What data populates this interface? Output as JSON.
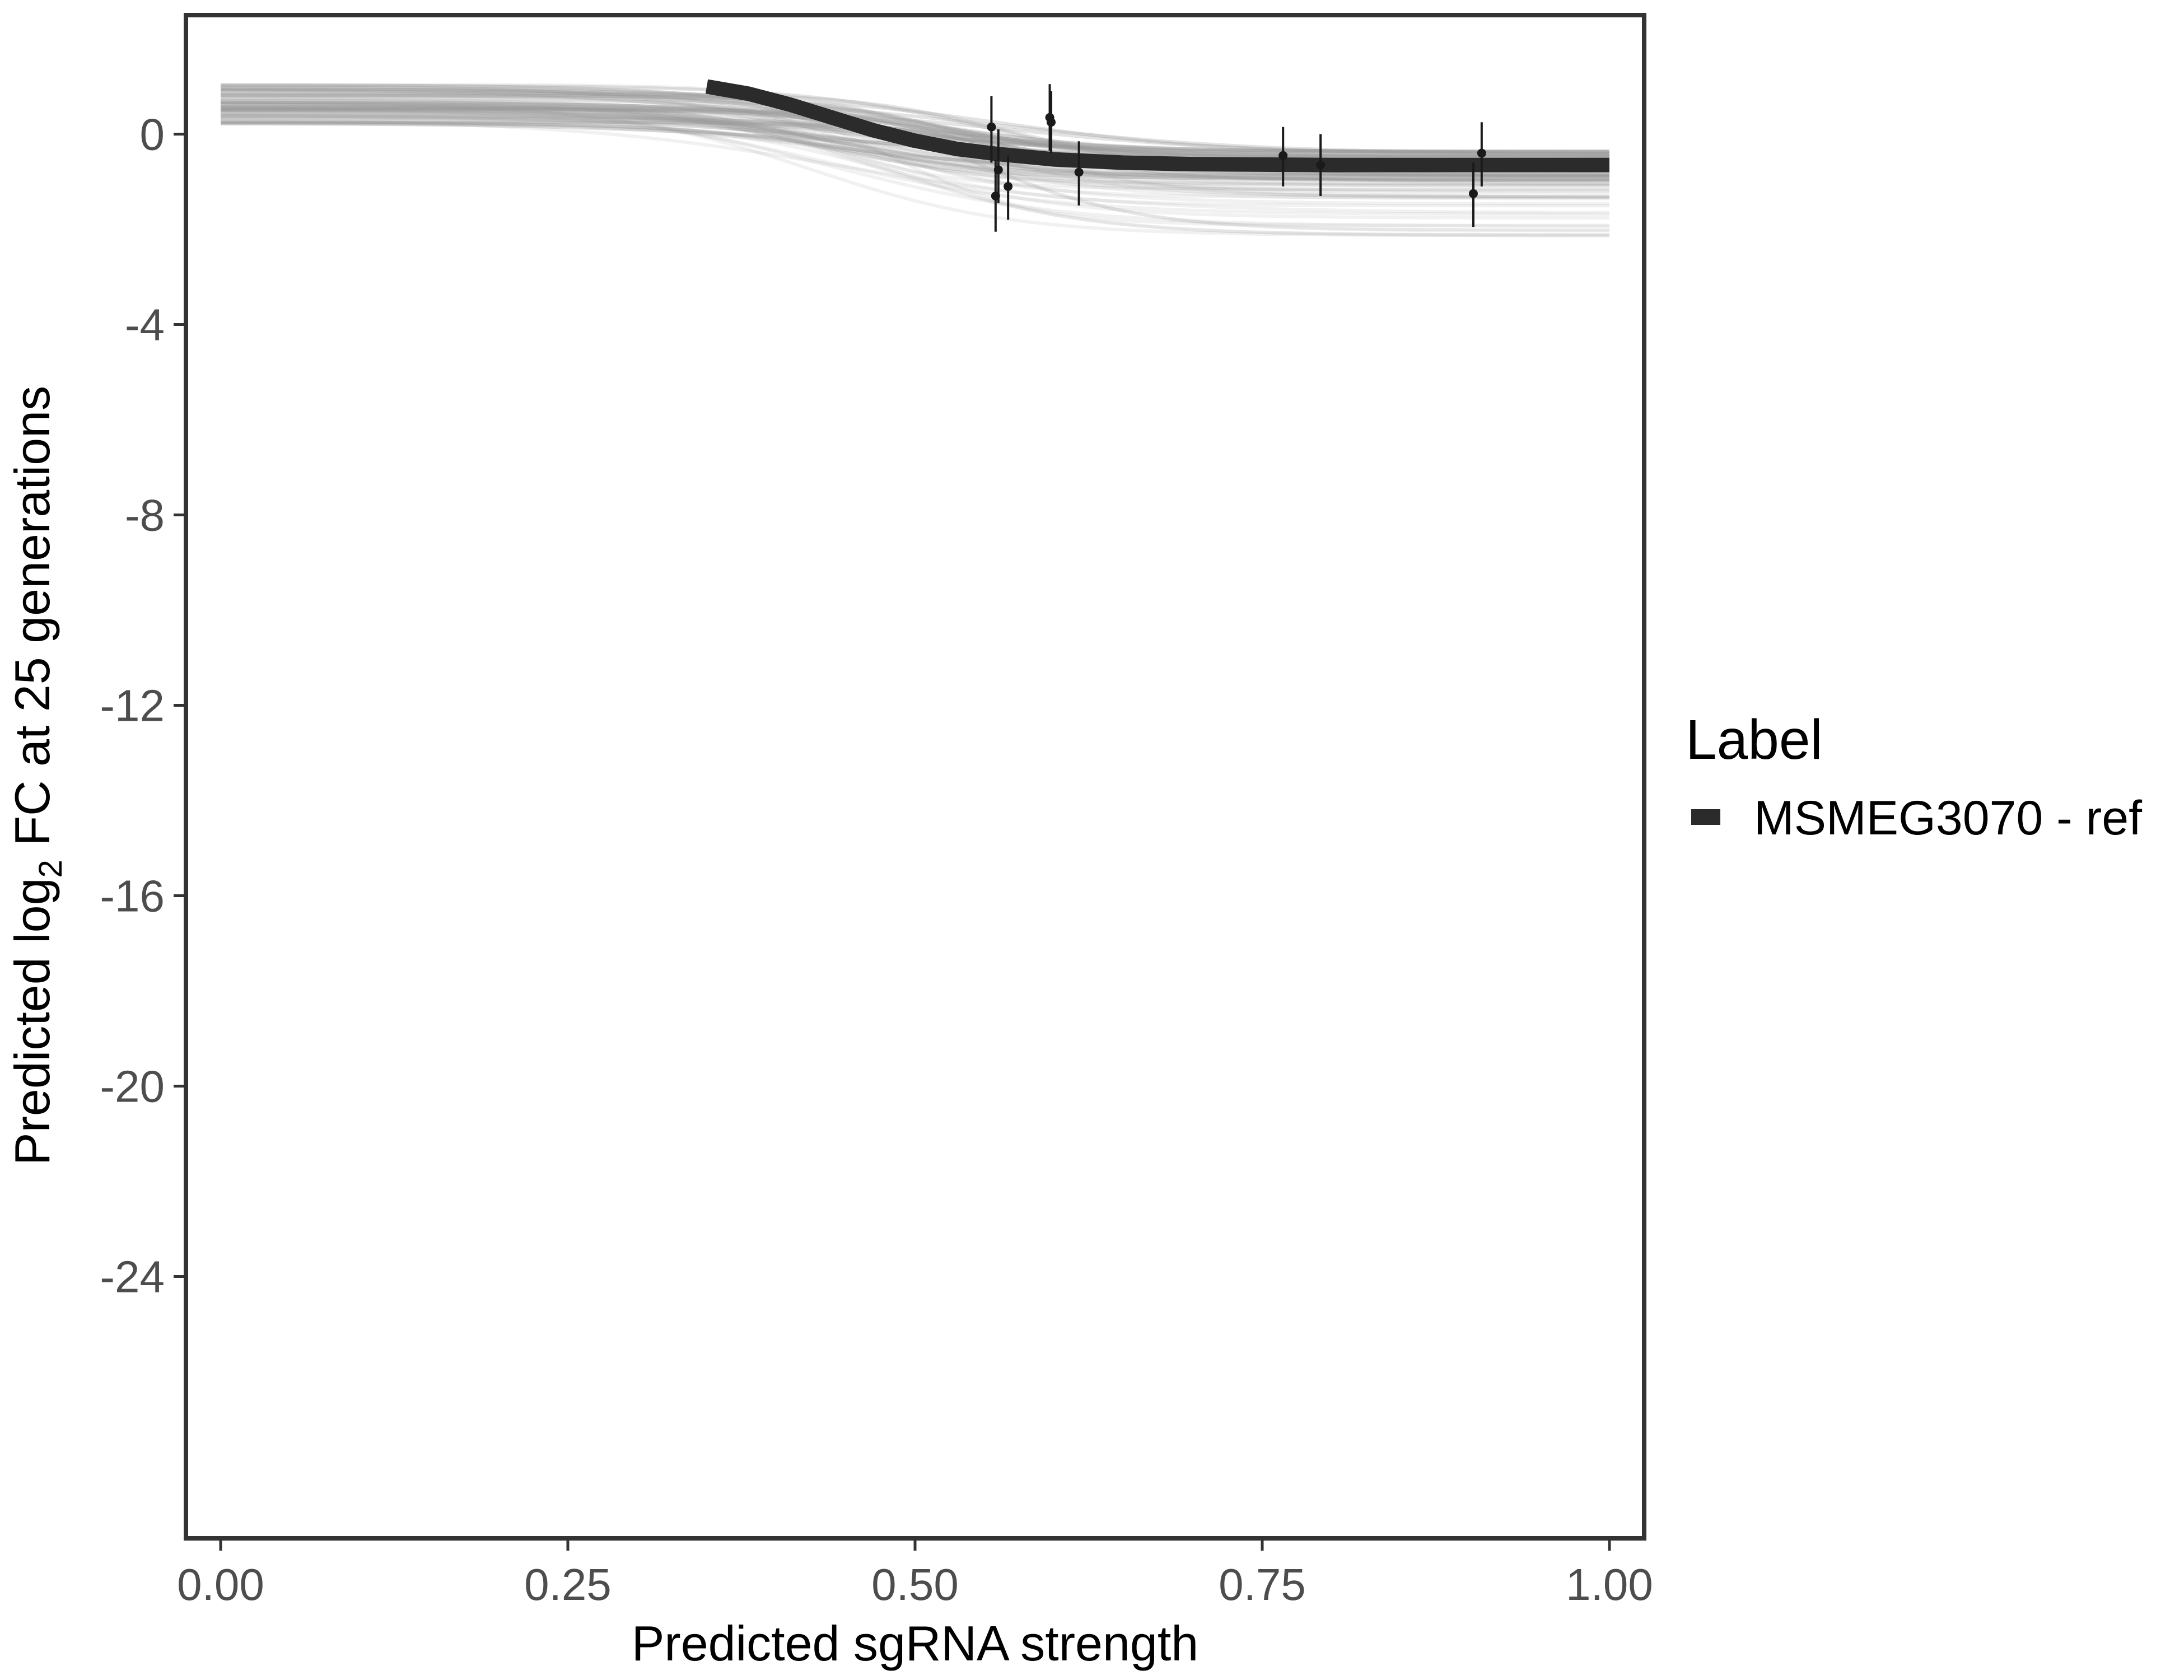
{
  "chart_data": {
    "type": "line",
    "xlabel": "Predicted sgRNA strength",
    "ylabel_parts": [
      "Predicted  log",
      "2",
      " FC at 25 generations"
    ],
    "xlim": [
      -0.025,
      1.025
    ],
    "ylim": [
      -29.5,
      2.5
    ],
    "x_ticks": [
      {
        "value": 0.0,
        "label": "0.00"
      },
      {
        "value": 0.25,
        "label": "0.25"
      },
      {
        "value": 0.5,
        "label": "0.50"
      },
      {
        "value": 0.75,
        "label": "0.75"
      },
      {
        "value": 1.0,
        "label": "1.00"
      }
    ],
    "y_ticks": [
      {
        "value": 0,
        "label": "0"
      },
      {
        "value": -4,
        "label": "-4"
      },
      {
        "value": -8,
        "label": "-8"
      },
      {
        "value": -12,
        "label": "-12"
      },
      {
        "value": -16,
        "label": "-16"
      },
      {
        "value": -20,
        "label": "-20"
      },
      {
        "value": -24,
        "label": "-24"
      }
    ],
    "legend": {
      "title": "Label",
      "position": "right",
      "entries": [
        {
          "name": "MSMEG3070 - ref",
          "color": "#2b2b2b"
        }
      ]
    },
    "series": [
      {
        "name": "MSMEG3070 - ref",
        "color": "#2b2b2b",
        "x": [
          0.35,
          0.38,
          0.41,
          0.44,
          0.47,
          0.5,
          0.53,
          0.56,
          0.6,
          0.65,
          0.7,
          0.75,
          0.8,
          0.85,
          0.9,
          0.95,
          1.0
        ],
        "y": [
          1.0,
          0.85,
          0.62,
          0.35,
          0.08,
          -0.14,
          -0.31,
          -0.42,
          -0.53,
          -0.6,
          -0.63,
          -0.64,
          -0.65,
          -0.65,
          -0.65,
          -0.65,
          -0.65
        ]
      }
    ],
    "points": [
      {
        "x": 0.555,
        "y": 0.15,
        "lo": -0.6,
        "hi": 0.8
      },
      {
        "x": 0.558,
        "y": -1.3,
        "lo": -2.05,
        "hi": -0.55
      },
      {
        "x": 0.56,
        "y": -0.75,
        "lo": -1.45,
        "hi": 0.1
      },
      {
        "x": 0.567,
        "y": -1.1,
        "lo": -1.8,
        "hi": -0.45
      },
      {
        "x": 0.597,
        "y": 0.35,
        "lo": -0.35,
        "hi": 1.05
      },
      {
        "x": 0.598,
        "y": 0.25,
        "lo": -0.4,
        "hi": 0.9
      },
      {
        "x": 0.618,
        "y": -0.8,
        "lo": -1.5,
        "hi": -0.15
      },
      {
        "x": 0.765,
        "y": -0.45,
        "lo": -1.1,
        "hi": 0.15
      },
      {
        "x": 0.792,
        "y": -0.65,
        "lo": -1.3,
        "hi": 0.0
      },
      {
        "x": 0.902,
        "y": -1.25,
        "lo": -1.95,
        "hi": -0.6
      },
      {
        "x": 0.908,
        "y": -0.4,
        "lo": -1.1,
        "hi": 0.25
      }
    ],
    "grid": false
  }
}
